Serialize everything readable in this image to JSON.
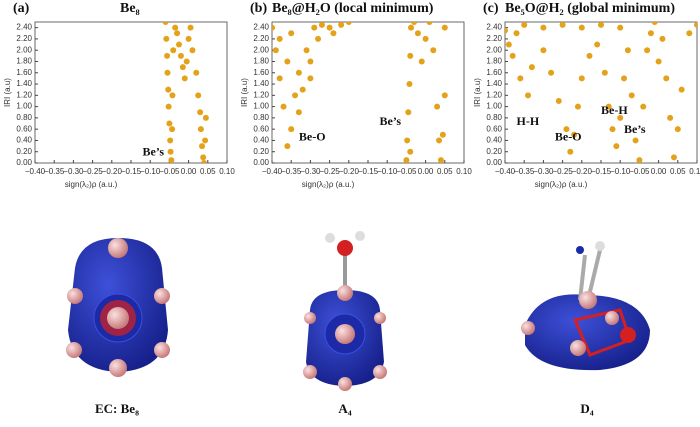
{
  "chart_data": [
    {
      "type": "scatter",
      "panel": "(a)",
      "title": "Be₈",
      "xlabel": "sign(λ₂)ρ (a.u.)",
      "ylabel": "IRI (a.u)",
      "color": "#e3a21a",
      "xlim": [
        -0.4,
        0.1
      ],
      "ylim": [
        0,
        2.5
      ],
      "xticks": [
        {
          "value": -0.4,
          "label": "−0.40"
        },
        {
          "value": -0.35,
          "label": "−0.35"
        },
        {
          "value": -0.3,
          "label": "−0.30"
        },
        {
          "value": -0.25,
          "label": "−0.25"
        },
        {
          "value": -0.2,
          "label": "−0.20"
        },
        {
          "value": -0.15,
          "label": "−0.15"
        },
        {
          "value": -0.1,
          "label": "−0.10"
        },
        {
          "value": -0.05,
          "label": "−0.05"
        },
        {
          "value": 0,
          "label": "0.00"
        },
        {
          "value": 0.05,
          "label": "0.05"
        },
        {
          "value": 0.1,
          "label": "0.10"
        }
      ],
      "yticks": [
        {
          "value": 0,
          "label": "0.00"
        },
        {
          "value": 0.2,
          "label": "0.20"
        },
        {
          "value": 0.4,
          "label": "0.40"
        },
        {
          "value": 0.6,
          "label": "0.60"
        },
        {
          "value": 0.8,
          "label": "0.80"
        },
        {
          "value": 1.0,
          "label": "1.00"
        },
        {
          "value": 1.2,
          "label": "1.20"
        },
        {
          "value": 1.4,
          "label": "1.40"
        },
        {
          "value": 1.6,
          "label": "1.60"
        },
        {
          "value": 1.8,
          "label": "1.80"
        },
        {
          "value": 2.0,
          "label": "2.00"
        },
        {
          "value": 2.2,
          "label": "2.20"
        },
        {
          "value": 2.4,
          "label": "2.40"
        }
      ],
      "x": [
        -0.06,
        -0.058,
        -0.056,
        -0.055,
        -0.053,
        -0.052,
        -0.05,
        -0.048,
        -0.047,
        -0.045,
        -0.043,
        -0.042,
        -0.04,
        -0.035,
        -0.03,
        -0.025,
        -0.02,
        -0.015,
        -0.01,
        -0.005,
        0,
        0.005,
        0.01,
        0.02,
        0.025,
        0.03,
        0.032,
        0.035,
        0.038,
        0.04,
        0.043,
        0.045
      ],
      "y": [
        2.5,
        2.2,
        1.9,
        1.6,
        1.3,
        1.0,
        0.7,
        0.4,
        0.2,
        0.05,
        0.6,
        1.2,
        2.0,
        2.4,
        2.3,
        2.1,
        1.9,
        1.7,
        1.5,
        1.8,
        2.2,
        2.4,
        2.0,
        1.6,
        1.2,
        0.9,
        0.6,
        0.3,
        0.1,
        0.0,
        0.4,
        0.8
      ],
      "annotations": [
        {
          "text": "Be’s",
          "x": -0.12,
          "y": 0.18
        }
      ]
    },
    {
      "type": "scatter",
      "panel": "(b)",
      "title": "Be₈@H₂O (local minimum)",
      "xlabel": "sign(λ₂)ρ (a.u.)",
      "ylabel": "IRI (a.u)",
      "color": "#e3a21a",
      "xlim": [
        -0.4,
        0.1
      ],
      "ylim": [
        0,
        2.5
      ],
      "xticks": [
        {
          "value": -0.4,
          "label": "−0.40"
        },
        {
          "value": -0.35,
          "label": "−0.35"
        },
        {
          "value": -0.3,
          "label": "−0.30"
        },
        {
          "value": -0.25,
          "label": "−0.25"
        },
        {
          "value": -0.2,
          "label": "−0.20"
        },
        {
          "value": -0.15,
          "label": "−0.15"
        },
        {
          "value": -0.1,
          "label": "−0.10"
        },
        {
          "value": -0.05,
          "label": "−0.05"
        },
        {
          "value": 0,
          "label": "0.00"
        },
        {
          "value": 0.05,
          "label": "0.05"
        },
        {
          "value": 0.1,
          "label": "0.10"
        }
      ],
      "yticks": [
        {
          "value": 0,
          "label": "0.00"
        },
        {
          "value": 0.2,
          "label": "0.20"
        },
        {
          "value": 0.4,
          "label": "0.40"
        },
        {
          "value": 0.6,
          "label": "0.60"
        },
        {
          "value": 0.8,
          "label": "0.80"
        },
        {
          "value": 1.0,
          "label": "1.00"
        },
        {
          "value": 1.2,
          "label": "1.20"
        },
        {
          "value": 1.4,
          "label": "1.40"
        },
        {
          "value": 1.6,
          "label": "1.60"
        },
        {
          "value": 1.8,
          "label": "1.80"
        },
        {
          "value": 2.0,
          "label": "2.00"
        },
        {
          "value": 2.2,
          "label": "2.20"
        },
        {
          "value": 2.4,
          "label": "2.40"
        }
      ],
      "x": [
        -0.36,
        -0.35,
        -0.37,
        -0.38,
        -0.39,
        -0.4,
        -0.33,
        -0.32,
        -0.3,
        -0.28,
        -0.25,
        -0.22,
        -0.2,
        -0.34,
        -0.36,
        -0.31,
        -0.27,
        -0.35,
        -0.3,
        -0.33,
        -0.38,
        -0.24,
        -0.29,
        -0.05,
        -0.048,
        -0.045,
        -0.042,
        -0.04,
        -0.038,
        -0.03,
        -0.02,
        -0.01,
        0,
        0.01,
        0.02,
        0.03,
        0.035,
        0.04,
        0.045,
        0.05,
        0.05,
        -0.04
      ],
      "y": [
        0.3,
        0.6,
        1.0,
        1.5,
        2.0,
        2.4,
        0.9,
        1.3,
        1.8,
        2.2,
        2.4,
        2.45,
        2.5,
        1.2,
        1.8,
        2.0,
        2.45,
        2.3,
        1.5,
        1.6,
        2.2,
        2.3,
        2.4,
        0.05,
        0.4,
        0.9,
        1.4,
        1.9,
        2.4,
        2.5,
        2.3,
        1.8,
        2.2,
        2.5,
        2.0,
        1.0,
        0.4,
        0.05,
        0.5,
        1.2,
        2.4,
        0.2
      ],
      "annotations": [
        {
          "text": "Be-O",
          "x": -0.33,
          "y": 0.45
        },
        {
          "text": "Be’s",
          "x": -0.12,
          "y": 0.72
        }
      ]
    },
    {
      "type": "scatter",
      "panel": "(c)",
      "title": "Be₅O@H₂ (global minimum)",
      "xlabel": "sign(λ₂)ρ (a.u.)",
      "ylabel": "IRI (a.u)",
      "color": "#e3a21a",
      "xlim": [
        -0.4,
        0.1
      ],
      "ylim": [
        0,
        2.5
      ],
      "xticks": [
        {
          "value": -0.4,
          "label": "−0.40"
        },
        {
          "value": -0.35,
          "label": "−0.35"
        },
        {
          "value": -0.3,
          "label": "−0.30"
        },
        {
          "value": -0.25,
          "label": "−0.25"
        },
        {
          "value": -0.2,
          "label": "−0.20"
        },
        {
          "value": -0.15,
          "label": "−0.15"
        },
        {
          "value": -0.1,
          "label": "−0.10"
        },
        {
          "value": -0.05,
          "label": "−0.05"
        },
        {
          "value": 0,
          "label": "0.00"
        },
        {
          "value": 0.05,
          "label": "0.05"
        },
        {
          "value": 0.1,
          "label": "0.10"
        }
      ],
      "yticks": [
        {
          "value": 0,
          "label": "0.00"
        },
        {
          "value": 0.2,
          "label": "0.20"
        },
        {
          "value": 0.4,
          "label": "0.40"
        },
        {
          "value": 0.6,
          "label": "0.60"
        },
        {
          "value": 0.8,
          "label": "0.80"
        },
        {
          "value": 1.0,
          "label": "1.00"
        },
        {
          "value": 1.2,
          "label": "1.20"
        },
        {
          "value": 1.4,
          "label": "1.40"
        },
        {
          "value": 1.6,
          "label": "1.60"
        },
        {
          "value": 1.8,
          "label": "1.80"
        },
        {
          "value": 2.0,
          "label": "2.00"
        },
        {
          "value": 2.2,
          "label": "2.20"
        },
        {
          "value": 2.4,
          "label": "2.40"
        }
      ],
      "x": [
        -0.4,
        -0.35,
        -0.3,
        -0.25,
        -0.2,
        -0.15,
        -0.1,
        -0.38,
        -0.36,
        -0.34,
        -0.33,
        -0.3,
        -0.28,
        -0.26,
        -0.24,
        -0.23,
        -0.22,
        -0.21,
        -0.2,
        -0.18,
        -0.16,
        -0.14,
        -0.13,
        -0.12,
        -0.11,
        -0.1,
        -0.09,
        -0.08,
        -0.07,
        -0.06,
        -0.05,
        -0.04,
        -0.03,
        -0.02,
        -0.01,
        0,
        0.01,
        0.02,
        0.03,
        0.04,
        0.05,
        0.06,
        0.08,
        0.1,
        -0.39,
        -0.37
      ],
      "y": [
        2.35,
        2.45,
        2.4,
        2.45,
        2.4,
        2.45,
        2.4,
        1.9,
        1.5,
        1.2,
        1.7,
        2.0,
        1.6,
        1.1,
        0.6,
        0.2,
        0.5,
        1.0,
        1.5,
        1.9,
        2.1,
        1.6,
        1.0,
        0.6,
        0.3,
        0.8,
        1.5,
        2.0,
        1.2,
        0.4,
        0.05,
        1.0,
        2.0,
        2.3,
        2.5,
        1.8,
        2.2,
        1.5,
        0.8,
        0.1,
        0.6,
        1.3,
        2.3,
        2.45,
        2.1,
        2.3
      ],
      "annotations": [
        {
          "text": "H-H",
          "x": -0.37,
          "y": 0.72
        },
        {
          "text": "Be-O",
          "x": -0.27,
          "y": 0.45
        },
        {
          "text": "Be-H",
          "x": -0.15,
          "y": 0.92
        },
        {
          "text": "Be’s",
          "x": -0.09,
          "y": 0.58
        }
      ]
    }
  ],
  "captions": [
    "EC: Be₈",
    "A₄",
    "D₄"
  ]
}
